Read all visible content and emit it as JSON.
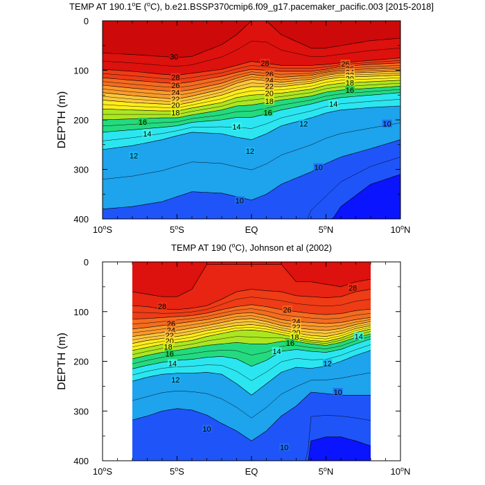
{
  "chart_data": [
    {
      "type": "contour",
      "title": "TEMP AT 190.1°E (°C), b.e21.BSSP370cmip6.f09_g17.pacemaker_pacific.003 [2015-2018]",
      "title_parts": {
        "before": "TEMP AT 190.1",
        "sup": "o",
        "after": "E (",
        "sup2": "o",
        "after2": "C), b.e21.BSSP370cmip6.f09_g17.pacemaker_pacific.003 [2015-2018]"
      },
      "xlabel": "",
      "ylabel": "DEPTH (m)",
      "xlim": [
        -10,
        10
      ],
      "ylim": [
        400,
        0
      ],
      "data_xlim": [
        -10,
        10
      ],
      "x_ticks": [
        {
          "value": -10,
          "num": "10",
          "suf": "S"
        },
        {
          "value": -5,
          "num": "5",
          "suf": "S"
        },
        {
          "value": 0,
          "num": "EQ",
          "suf": ""
        },
        {
          "value": 5,
          "num": "5",
          "suf": "N"
        },
        {
          "value": 10,
          "num": "10",
          "suf": "N"
        }
      ],
      "y_ticks": [
        "0",
        "100",
        "200",
        "300",
        "400"
      ],
      "contour_interval": 1,
      "contour_range": [
        8,
        30
      ],
      "isotherm_depths": {
        "lat": [
          -10,
          -8,
          -6,
          -5,
          -4,
          -2,
          -1,
          0,
          1,
          2,
          4,
          5,
          6,
          8,
          10
        ],
        "T30": [
          65,
          68,
          72,
          74,
          72,
          48,
          28,
          0,
          0,
          28,
          55,
          55,
          50,
          40,
          35
        ],
        "T28": [
          98,
          102,
          108,
          110,
          106,
          98,
          90,
          82,
          86,
          90,
          90,
          88,
          85,
          80,
          75
        ],
        "T26": [
          115,
          120,
          125,
          127,
          123,
          112,
          104,
          98,
          100,
          102,
          102,
          98,
          92,
          88,
          85
        ],
        "T24": [
          130,
          136,
          141,
          143,
          139,
          126,
          116,
          108,
          112,
          114,
          110,
          104,
          100,
          97,
          95
        ],
        "T22": [
          145,
          151,
          156,
          158,
          152,
          138,
          126,
          118,
          121,
          124,
          118,
          110,
          106,
          104,
          102
        ],
        "T20": [
          160,
          165,
          168,
          170,
          164,
          150,
          140,
          133,
          133,
          133,
          126,
          118,
          114,
          112,
          110
        ],
        "T18": [
          178,
          180,
          182,
          182,
          176,
          165,
          155,
          150,
          148,
          146,
          138,
          130,
          126,
          123,
          120
        ],
        "T16": [
          200,
          198,
          196,
          196,
          190,
          180,
          172,
          170,
          165,
          160,
          152,
          144,
          140,
          136,
          132
        ],
        "T14": [
          225,
          220,
          215,
          212,
          205,
          200,
          195,
          195,
          188,
          180,
          168,
          160,
          155,
          150,
          145
        ],
        "T12": [
          260,
          252,
          240,
          232,
          225,
          228,
          235,
          240,
          228,
          212,
          196,
          186,
          180,
          175,
          172
        ],
        "T10": [
          380,
          375,
          365,
          355,
          345,
          348,
          355,
          362,
          350,
          330,
          305,
          288,
          275,
          258,
          240
        ],
        "T8": [
          999,
          999,
          999,
          999,
          999,
          999,
          999,
          999,
          999,
          999,
          460,
          420,
          375,
          330,
          310
        ]
      },
      "contour_labels": [
        {
          "text": "30",
          "lat": -5.2,
          "depth": 72
        },
        {
          "text": "28",
          "lat": 0.9,
          "depth": 85
        },
        {
          "text": "26",
          "lat": 6.3,
          "depth": 87
        },
        {
          "text": "26",
          "lat": 6.6,
          "depth": 97
        },
        {
          "text": "24",
          "lat": 6.6,
          "depth": 104
        },
        {
          "text": "22",
          "lat": 6.6,
          "depth": 110
        },
        {
          "text": "20",
          "lat": 6.6,
          "depth": 117
        },
        {
          "text": "18",
          "lat": 6.6,
          "depth": 125
        },
        {
          "text": "16",
          "lat": 6.6,
          "depth": 140
        },
        {
          "text": "28",
          "lat": -5.1,
          "depth": 114
        },
        {
          "text": "26",
          "lat": -5.1,
          "depth": 130
        },
        {
          "text": "24",
          "lat": -5.1,
          "depth": 145
        },
        {
          "text": "22",
          "lat": -5.1,
          "depth": 158
        },
        {
          "text": "20",
          "lat": -5.1,
          "depth": 170
        },
        {
          "text": "18",
          "lat": -5.1,
          "depth": 185
        },
        {
          "text": "26",
          "lat": 1.2,
          "depth": 108
        },
        {
          "text": "24",
          "lat": 1.2,
          "depth": 120
        },
        {
          "text": "22",
          "lat": 1.2,
          "depth": 132
        },
        {
          "text": "20",
          "lat": 1.2,
          "depth": 146
        },
        {
          "text": "18",
          "lat": 1.2,
          "depth": 162
        },
        {
          "text": "16",
          "lat": 1.1,
          "depth": 185
        },
        {
          "text": "14",
          "lat": 5.5,
          "depth": 168
        },
        {
          "text": "12",
          "lat": 3.5,
          "depth": 208
        },
        {
          "text": "10",
          "lat": 9.1,
          "depth": 208
        },
        {
          "text": "16",
          "lat": -7.3,
          "depth": 204
        },
        {
          "text": "14",
          "lat": -1.0,
          "depth": 214
        },
        {
          "text": "14",
          "lat": -7.0,
          "depth": 228
        },
        {
          "text": "12",
          "lat": -0.1,
          "depth": 263
        },
        {
          "text": "12",
          "lat": -7.9,
          "depth": 272
        },
        {
          "text": "10",
          "lat": 4.5,
          "depth": 296
        },
        {
          "text": "10",
          "lat": -0.8,
          "depth": 363
        }
      ]
    },
    {
      "type": "contour",
      "title": "TEMP AT 190 (°C), Johnson et al (2002)",
      "title_parts": {
        "before": "TEMP AT 190 (",
        "sup": "o",
        "after": "C), Johnson et al (2002)",
        "sup2": "",
        "after2": ""
      },
      "xlabel": "",
      "ylabel": "DEPTH (m)",
      "xlim": [
        -10,
        10
      ],
      "ylim": [
        400,
        0
      ],
      "data_xlim": [
        -8,
        8
      ],
      "x_ticks": [
        {
          "value": -10,
          "num": "10",
          "suf": "S"
        },
        {
          "value": -5,
          "num": "5",
          "suf": "S"
        },
        {
          "value": 0,
          "num": "EQ",
          "suf": ""
        },
        {
          "value": 5,
          "num": "5",
          "suf": "N"
        },
        {
          "value": 10,
          "num": "10",
          "suf": "N"
        }
      ],
      "y_ticks": [
        "0",
        "100",
        "200",
        "300",
        "400"
      ],
      "contour_interval": 1,
      "contour_range": [
        8,
        29
      ],
      "isotherm_depths": {
        "lat": [
          -8,
          -7,
          -6,
          -5,
          -4,
          -3,
          -2,
          -1,
          0,
          1,
          2,
          3,
          4,
          5,
          6,
          7,
          8
        ],
        "T29": [
          60,
          65,
          70,
          70,
          55,
          5,
          5,
          5,
          5,
          5,
          5,
          40,
          40,
          45,
          50,
          40,
          35
        ],
        "T28": [
          88,
          90,
          95,
          96,
          93,
          88,
          75,
          60,
          55,
          58,
          60,
          68,
          70,
          72,
          70,
          60,
          55
        ],
        "T26": [
          115,
          114,
          112,
          110,
          108,
          103,
          96,
          90,
          86,
          90,
          96,
          100,
          104,
          106,
          104,
          98,
          95
        ],
        "T24": [
          135,
          132,
          128,
          124,
          120,
          116,
          110,
          104,
          102,
          108,
          116,
          120,
          122,
          124,
          122,
          116,
          112
        ],
        "T22": [
          150,
          146,
          142,
          138,
          133,
          128,
          122,
          116,
          114,
          120,
          128,
          133,
          136,
          138,
          134,
          126,
          120
        ],
        "T20": [
          164,
          158,
          154,
          150,
          145,
          138,
          133,
          128,
          126,
          130,
          137,
          143,
          148,
          150,
          144,
          134,
          128
        ],
        "T18": [
          178,
          172,
          166,
          162,
          158,
          150,
          144,
          138,
          137,
          140,
          146,
          152,
          158,
          160,
          153,
          142,
          135
        ],
        "T16": [
          195,
          188,
          182,
          178,
          173,
          168,
          165,
          162,
          165,
          165,
          160,
          160,
          165,
          168,
          162,
          152,
          145
        ],
        "T14": [
          215,
          208,
          202,
          198,
          196,
          192,
          190,
          195,
          210,
          198,
          180,
          176,
          180,
          182,
          176,
          165,
          155
        ],
        "T12": [
          240,
          232,
          226,
          224,
          224,
          222,
          226,
          245,
          268,
          245,
          222,
          212,
          214,
          210,
          200,
          188,
          178
        ],
        "T10": [
          318,
          310,
          300,
          295,
          298,
          308,
          325,
          340,
          360,
          340,
          310,
          290,
          262,
          265,
          268,
          268,
          268
        ],
        "T8": [
          999,
          999,
          999,
          999,
          999,
          999,
          999,
          999,
          999,
          999,
          999,
          999,
          360,
          352,
          352,
          360,
          370
        ]
      },
      "contour_labels": [
        {
          "text": "28",
          "lat": 6.8,
          "depth": 52
        },
        {
          "text": "28",
          "lat": -6.0,
          "depth": 89
        },
        {
          "text": "26",
          "lat": 2.4,
          "depth": 96
        },
        {
          "text": "26",
          "lat": -5.4,
          "depth": 124
        },
        {
          "text": "24",
          "lat": 3.0,
          "depth": 120
        },
        {
          "text": "24",
          "lat": -5.4,
          "depth": 137
        },
        {
          "text": "22",
          "lat": 3.0,
          "depth": 131
        },
        {
          "text": "22",
          "lat": -5.5,
          "depth": 148
        },
        {
          "text": "20",
          "lat": 3.0,
          "depth": 142
        },
        {
          "text": "20",
          "lat": -5.5,
          "depth": 159
        },
        {
          "text": "18",
          "lat": 2.9,
          "depth": 151
        },
        {
          "text": "18",
          "lat": -5.6,
          "depth": 171
        },
        {
          "text": "16",
          "lat": 2.6,
          "depth": 163
        },
        {
          "text": "16",
          "lat": -5.5,
          "depth": 185
        },
        {
          "text": "14",
          "lat": 7.2,
          "depth": 150
        },
        {
          "text": "14",
          "lat": 1.7,
          "depth": 180
        },
        {
          "text": "14",
          "lat": -5.3,
          "depth": 204
        },
        {
          "text": "12",
          "lat": 5.1,
          "depth": 204
        },
        {
          "text": "12",
          "lat": -5.1,
          "depth": 237
        },
        {
          "text": "10",
          "lat": 5.8,
          "depth": 262
        },
        {
          "text": "10",
          "lat": -3.0,
          "depth": 336
        },
        {
          "text": "10",
          "lat": 2.2,
          "depth": 373
        }
      ]
    }
  ],
  "colormap": [
    {
      "t": 8.0,
      "c": "#0a14ff"
    },
    {
      "t": 9.0,
      "c": "#1e3cff"
    },
    {
      "t": 10.0,
      "c": "#1f6cf0"
    },
    {
      "t": 11.0,
      "c": "#218fe8"
    },
    {
      "t": 12.0,
      "c": "#1ab6f2"
    },
    {
      "t": 13.0,
      "c": "#17d7f7"
    },
    {
      "t": 14.0,
      "c": "#3ef5e8"
    },
    {
      "t": 15.0,
      "c": "#28e6a8"
    },
    {
      "t": 16.0,
      "c": "#1fce55"
    },
    {
      "t": 17.0,
      "c": "#7edb2a"
    },
    {
      "t": 18.0,
      "c": "#d9f018"
    },
    {
      "t": 19.0,
      "c": "#fbf70f"
    },
    {
      "t": 20.0,
      "c": "#fde324"
    },
    {
      "t": 21.0,
      "c": "#fdd23a"
    },
    {
      "t": 22.0,
      "c": "#fdbc3a"
    },
    {
      "t": 23.0,
      "c": "#fba52f"
    },
    {
      "t": 24.0,
      "c": "#f88f27"
    },
    {
      "t": 25.0,
      "c": "#f57722"
    },
    {
      "t": 26.0,
      "c": "#f2611d"
    },
    {
      "t": 27.0,
      "c": "#ef4817"
    },
    {
      "t": 28.0,
      "c": "#ec3014"
    },
    {
      "t": 29.0,
      "c": "#e3180f"
    },
    {
      "t": 30.0,
      "c": "#d60a0a"
    },
    {
      "t": 31.0,
      "c": "#c40808"
    }
  ]
}
